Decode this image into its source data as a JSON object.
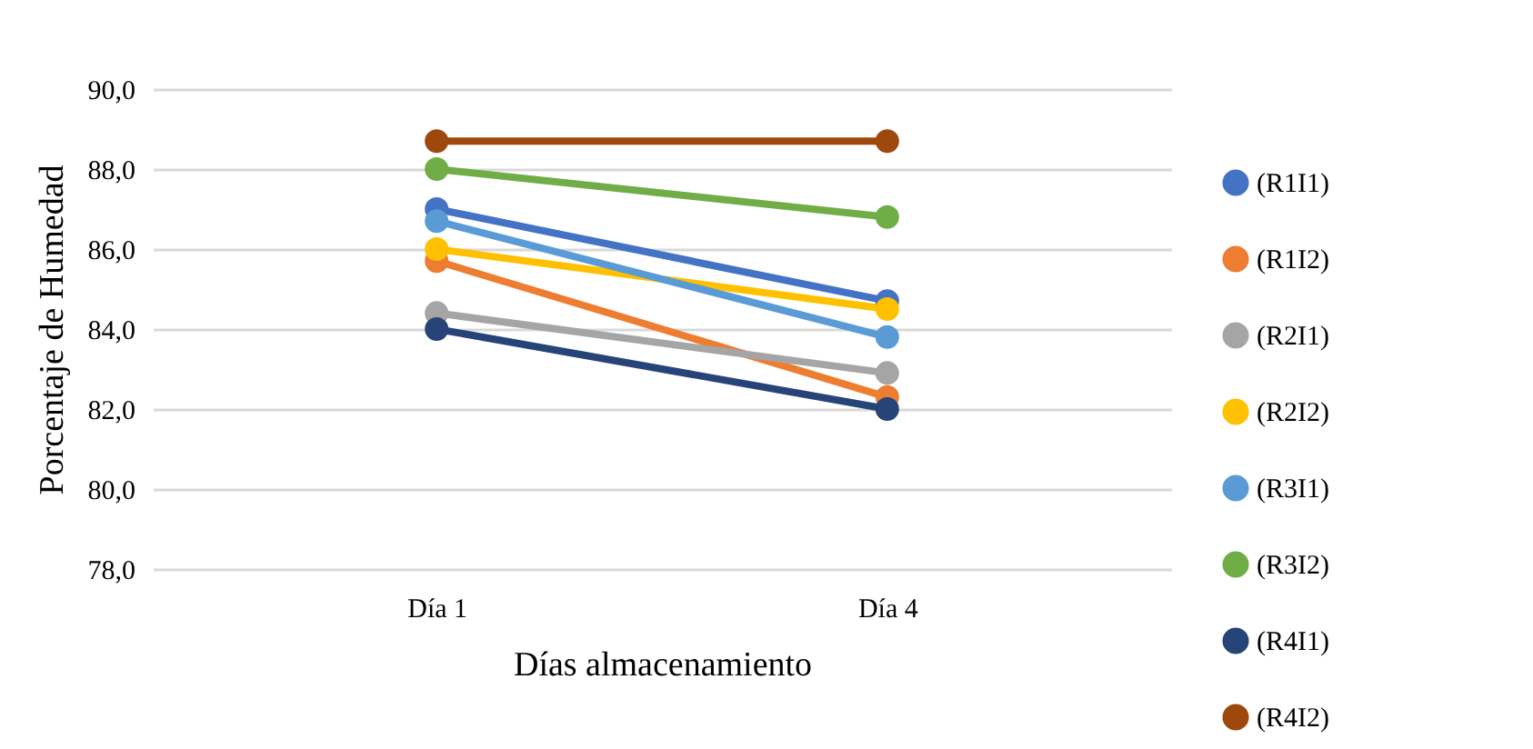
{
  "chart_data": {
    "type": "line",
    "xlabel": "Días almacenamiento",
    "ylabel": "Porcentaje de Humedad",
    "categories": [
      "Día 1",
      "Día 4"
    ],
    "series": [
      {
        "name": "(R1I1)",
        "color": "#4472c4",
        "values": [
          87.0,
          84.7
        ]
      },
      {
        "name": "(R1I2)",
        "color": "#ed7d31",
        "values": [
          85.7,
          82.3
        ]
      },
      {
        "name": "(R2I1)",
        "color": "#a5a5a5",
        "values": [
          84.4,
          82.9
        ]
      },
      {
        "name": "(R2I2)",
        "color": "#ffc000",
        "values": [
          86.0,
          84.5
        ]
      },
      {
        "name": "(R3I1)",
        "color": "#5b9bd5",
        "values": [
          86.7,
          83.8
        ]
      },
      {
        "name": "(R3I2)",
        "color": "#70ad47",
        "values": [
          88.0,
          86.8
        ]
      },
      {
        "name": "(R4I1)",
        "color": "#264478",
        "values": [
          84.0,
          82.0
        ]
      },
      {
        "name": "(R4I2)",
        "color": "#9e480e",
        "values": [
          88.7,
          88.7
        ]
      }
    ],
    "ylim": [
      78,
      90
    ],
    "yticks": [
      {
        "value": 78,
        "label": "78,0"
      },
      {
        "value": 80,
        "label": "80,0"
      },
      {
        "value": 82,
        "label": "82,0"
      },
      {
        "value": 84,
        "label": "84,0"
      },
      {
        "value": 86,
        "label": "86,0"
      },
      {
        "value": 88,
        "label": "88,0"
      },
      {
        "value": 90,
        "label": "90,0"
      }
    ],
    "grid": "y",
    "legend": "right",
    "marker": "circle",
    "line_style": "solid"
  }
}
